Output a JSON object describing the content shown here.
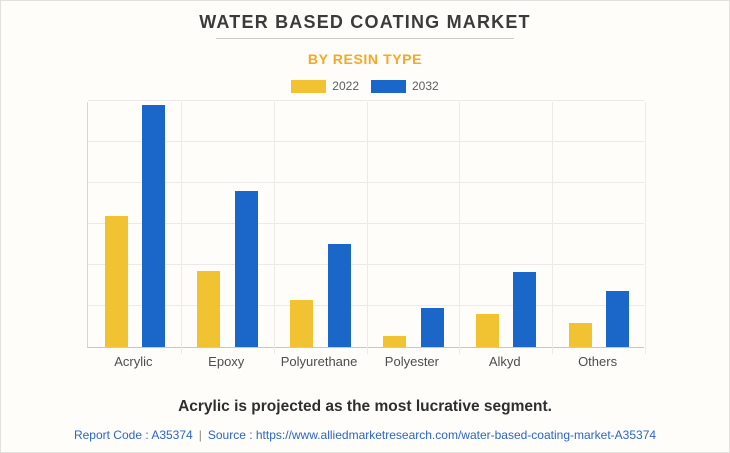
{
  "page": {
    "background": "#FFFDF9",
    "border_color": "#E3E1DE"
  },
  "header": {
    "title": "WATER BASED COATING MARKET",
    "subtitle": "BY RESIN TYPE",
    "subtitle_color": "#F7A823"
  },
  "legend": [
    {
      "label": "2022",
      "color": "#F1C232"
    },
    {
      "label": "2032",
      "color": "#1B66C9"
    }
  ],
  "chart_data": {
    "type": "bar",
    "categories": [
      "Acrylic",
      "Epoxy",
      "Polyurethane",
      "Polyester",
      "Alkyd",
      "Others"
    ],
    "series": [
      {
        "name": "2022",
        "color": "#F1C232",
        "values": [
          3.2,
          1.85,
          1.15,
          0.27,
          0.8,
          0.58
        ]
      },
      {
        "name": "2032",
        "color": "#1B66C9",
        "values": [
          5.9,
          3.8,
          2.5,
          0.95,
          1.83,
          1.37
        ]
      }
    ],
    "title": "WATER BASED COATING MARKET",
    "subtitle": "BY RESIN TYPE",
    "xlabel": "",
    "ylabel": "",
    "ylim": [
      0,
      6
    ],
    "grid": true,
    "gridline_color": "#ECEAE7",
    "legend_position": "top",
    "y_tick_labels_visible": false
  },
  "footer": {
    "insight": "Acrylic is projected as the most lucrative segment.",
    "report_code": "Report Code : A35374",
    "separator": "|",
    "source": "Source : https://www.alliedmarketresearch.com/water-based-coating-market-A35374"
  }
}
